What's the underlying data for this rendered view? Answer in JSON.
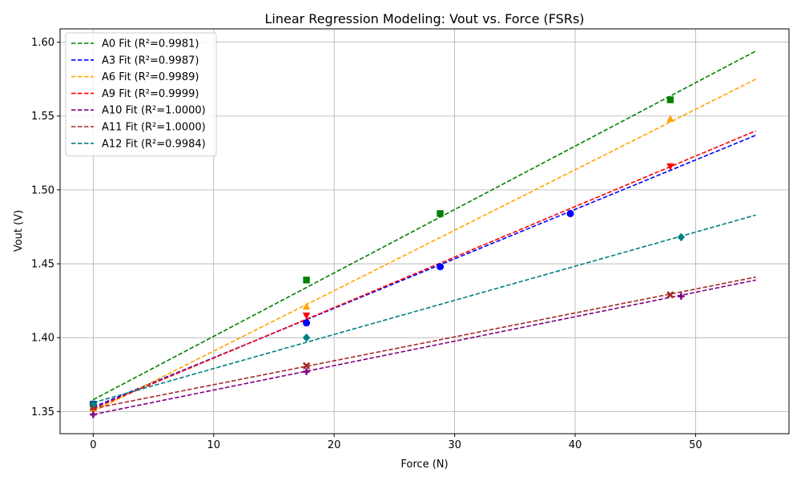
{
  "chart_data": {
    "type": "scatter",
    "title": "Linear Regression Modeling: Vout vs. Force (FSRs)",
    "xlabel": "Force (N)",
    "ylabel": "Vout (V)",
    "xlim": [
      -2.75,
      57.75
    ],
    "ylim": [
      1.335,
      1.609
    ],
    "xticks": [
      0,
      10,
      20,
      30,
      40,
      50
    ],
    "xtick_labels": [
      "0",
      "10",
      "20",
      "30",
      "40",
      "50"
    ],
    "yticks": [
      1.35,
      1.4,
      1.45,
      1.5,
      1.55,
      1.6
    ],
    "ytick_labels": [
      "1.35",
      "1.40",
      "1.45",
      "1.50",
      "1.55",
      "1.60"
    ],
    "grid": true,
    "legend_position": "top-left",
    "series": [
      {
        "name": "A0 Fit (R²=0.9981)",
        "color": "#008000",
        "marker": "square",
        "points": [
          [
            0,
            1.355
          ],
          [
            17.7,
            1.439
          ],
          [
            28.8,
            1.484
          ],
          [
            47.9,
            1.561
          ]
        ],
        "fit": [
          [
            0,
            1.358
          ],
          [
            55,
            1.594
          ]
        ]
      },
      {
        "name": "A3 Fit (R²=0.9987)",
        "color": "#0000ff",
        "marker": "circle",
        "points": [
          [
            0,
            1.355
          ],
          [
            17.7,
            1.41
          ],
          [
            28.8,
            1.448
          ],
          [
            39.6,
            1.484
          ]
        ],
        "fit": [
          [
            0,
            1.353
          ],
          [
            55,
            1.537
          ]
        ]
      },
      {
        "name": "A6 Fit (R²=0.9989)",
        "color": "#ffa500",
        "marker": "triangle-up",
        "points": [
          [
            0,
            1.352
          ],
          [
            17.7,
            1.421
          ],
          [
            47.9,
            1.548
          ]
        ],
        "fit": [
          [
            0,
            1.35
          ],
          [
            55,
            1.575
          ]
        ]
      },
      {
        "name": "A9 Fit (R²=0.9999)",
        "color": "#ff0000",
        "marker": "triangle-down",
        "points": [
          [
            0,
            1.353
          ],
          [
            17.7,
            1.415
          ],
          [
            47.9,
            1.516
          ]
        ],
        "fit": [
          [
            0,
            1.352
          ],
          [
            55,
            1.54
          ]
        ]
      },
      {
        "name": "A10 Fit (R²=1.0000)",
        "color": "#800080",
        "marker": "plus",
        "points": [
          [
            0,
            1.348
          ],
          [
            17.7,
            1.377
          ],
          [
            48.8,
            1.428
          ]
        ],
        "fit": [
          [
            0,
            1.348
          ],
          [
            55,
            1.439
          ]
        ]
      },
      {
        "name": "A11 Fit (R²=1.0000)",
        "color": "#a52a2a",
        "marker": "x",
        "points": [
          [
            0,
            1.353
          ],
          [
            17.7,
            1.381
          ],
          [
            47.9,
            1.429
          ]
        ],
        "fit": [
          [
            0,
            1.352
          ],
          [
            55,
            1.441
          ]
        ]
      },
      {
        "name": "A12 Fit (R²=0.9984)",
        "color": "#008080",
        "marker": "diamond",
        "points": [
          [
            0,
            1.355
          ],
          [
            17.7,
            1.4
          ],
          [
            48.8,
            1.468
          ]
        ],
        "fit": [
          [
            0,
            1.356
          ],
          [
            55,
            1.483
          ]
        ]
      }
    ]
  }
}
